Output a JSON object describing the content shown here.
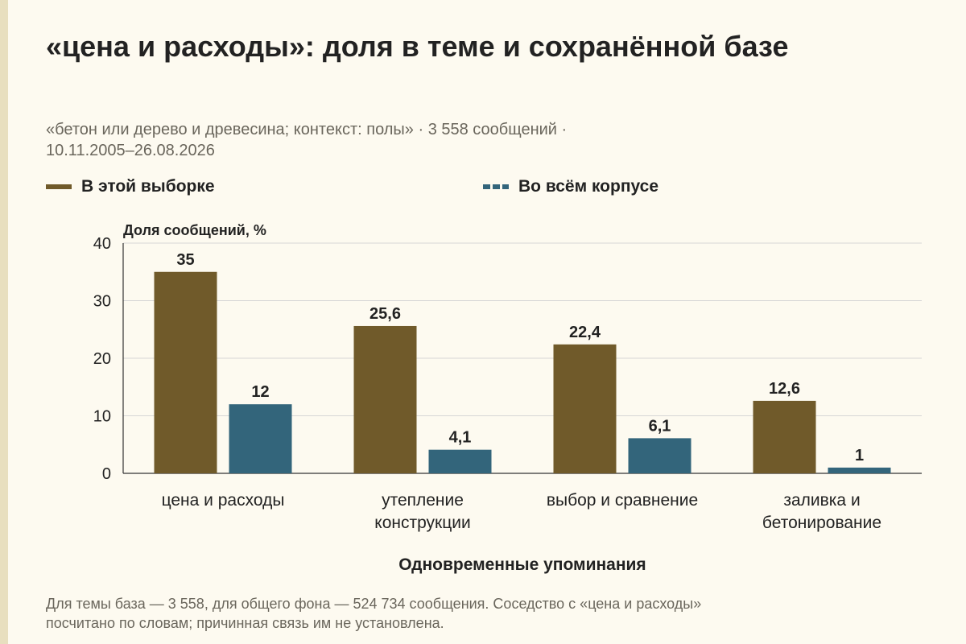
{
  "title": "«цена и расходы»: доля в теме и сохранённой базе",
  "subtitle_line1": "«бетон или дерево и древесина; контекст: полы» · 3 558 сообщений ·",
  "subtitle_line2": "10.11.2005–26.08.2026",
  "footnote_line1": "Для темы база — 3 558, для общего фона — 524 734 сообщения. Соседство с «цена и расходы»",
  "footnote_line2": "посчитано по словам; причинная связь им не установлена.",
  "colors": {
    "sample": "#705a2a",
    "corpus": "#33657b",
    "grid": "#d6d6d6",
    "text": "#222222"
  },
  "chart_data": {
    "type": "bar",
    "ylabel": "Доля сообщений, %",
    "xlabel": "Одновременные упоминания",
    "ylim": [
      0,
      40
    ],
    "yticks": [
      0,
      10,
      20,
      30,
      40
    ],
    "grid": true,
    "legend_position": "top",
    "categories": [
      [
        "цена и расходы"
      ],
      [
        "утепление",
        "конструкции"
      ],
      [
        "выбор и сравнение"
      ],
      [
        "заливка и",
        "бетонирование"
      ]
    ],
    "series": [
      {
        "name": "В этой выборке",
        "values": [
          35,
          25.6,
          22.4,
          12.6
        ],
        "labels": [
          "35",
          "25,6",
          "22,4",
          "12,6"
        ],
        "color": "#705a2a"
      },
      {
        "name": "Во всём корпусе",
        "values": [
          12,
          4.1,
          6.1,
          1
        ],
        "labels": [
          "12",
          "4,1",
          "6,1",
          "1"
        ],
        "color": "#33657b"
      }
    ]
  }
}
